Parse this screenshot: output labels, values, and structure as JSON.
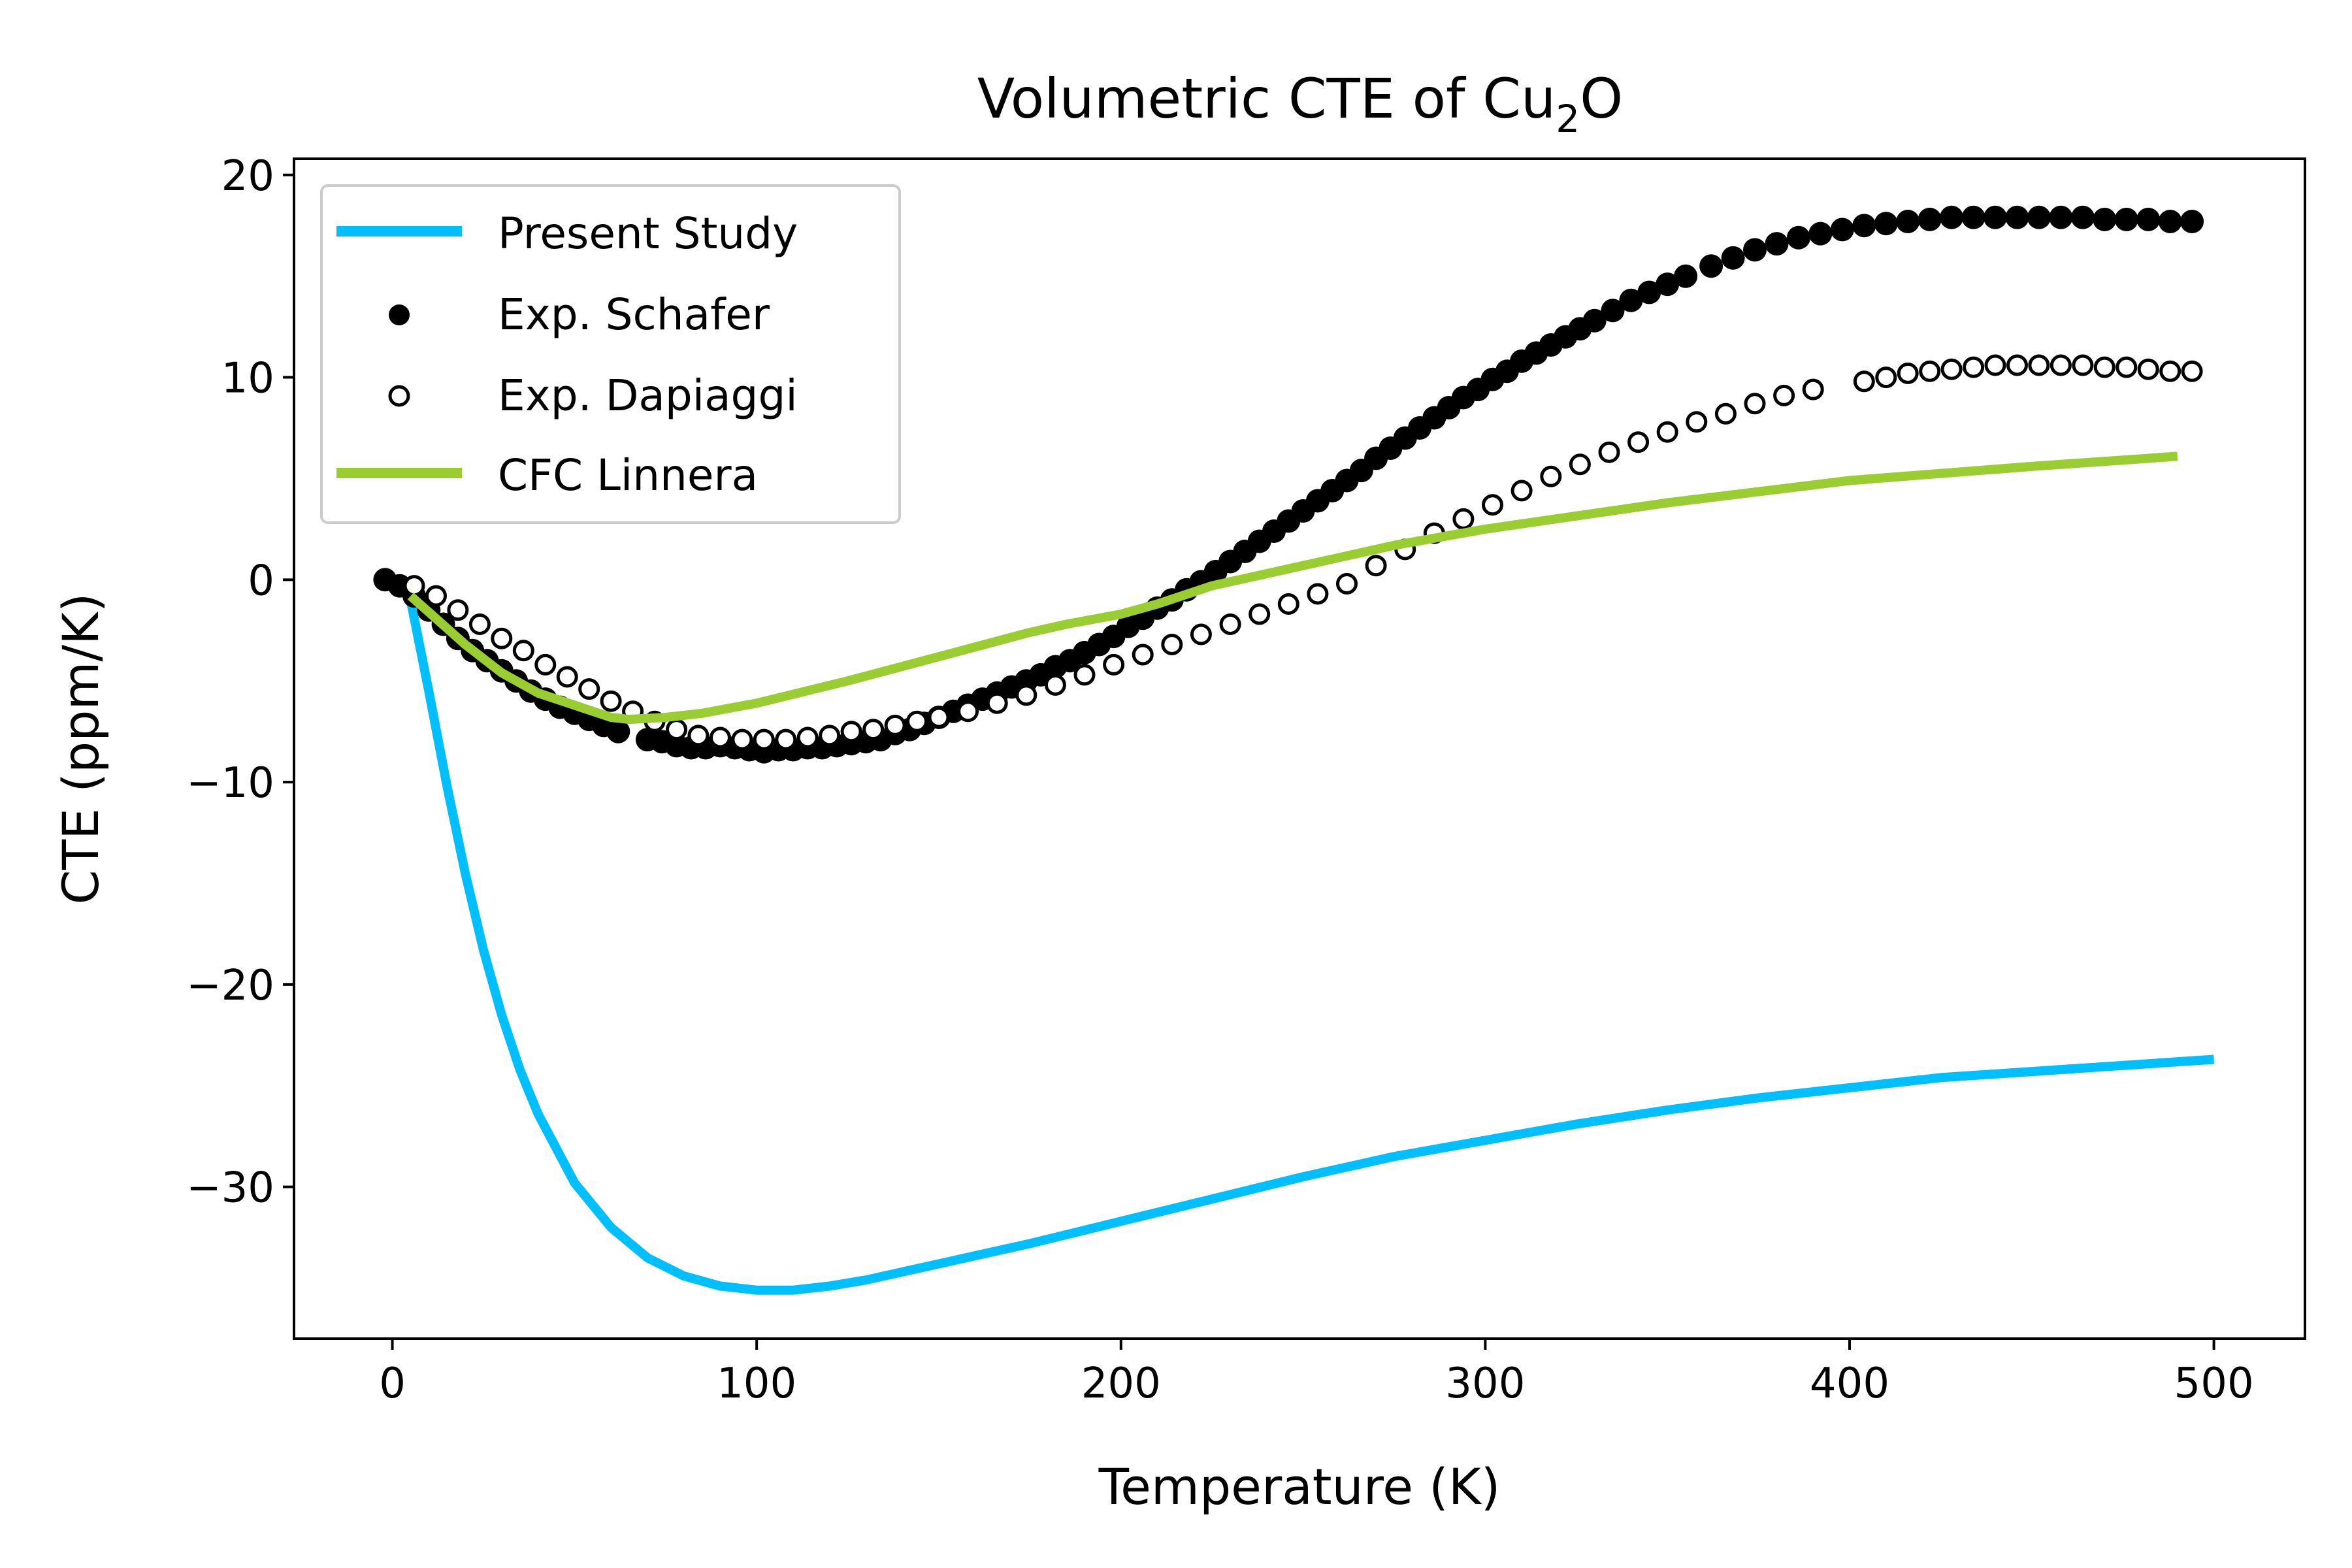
{
  "chart_data": {
    "type": "line",
    "title": "Volumetric CTE of Cu",
    "title_subscript": "2",
    "title_suffix": "O",
    "xlabel": "Temperature (K)",
    "ylabel": "CTE (ppm/K)",
    "xlim": [
      -27,
      525
    ],
    "ylim": [
      -37.5,
      20.8
    ],
    "xticks": [
      0,
      100,
      200,
      300,
      400,
      500
    ],
    "yticks": [
      -30,
      -20,
      -10,
      0,
      10,
      20
    ],
    "xtick_labels": [
      "0",
      "100",
      "200",
      "300",
      "400",
      "500"
    ],
    "ytick_labels": [
      "−30",
      "−20",
      "−10",
      "0",
      "10",
      "20"
    ],
    "grid": false,
    "legend_position": "top-left",
    "series": [
      {
        "name": "Present Study",
        "kind": "line",
        "color": "#00bfff",
        "x": [
          5,
          10,
          15,
          20,
          25,
          30,
          35,
          40,
          50,
          60,
          70,
          80,
          90,
          100,
          110,
          120,
          130,
          140,
          150,
          175,
          200,
          225,
          250,
          275,
          300,
          325,
          350,
          375,
          400,
          425,
          450,
          475,
          500
        ],
        "y": [
          -1.0,
          -5.5,
          -10.2,
          -14.5,
          -18.3,
          -21.5,
          -24.2,
          -26.4,
          -29.8,
          -32.0,
          -33.5,
          -34.4,
          -34.9,
          -35.1,
          -35.1,
          -34.9,
          -34.6,
          -34.2,
          -33.8,
          -32.8,
          -31.7,
          -30.6,
          -29.5,
          -28.5,
          -27.7,
          -26.9,
          -26.2,
          -25.6,
          -25.1,
          -24.6,
          -24.3,
          -24.0,
          -23.7
        ]
      },
      {
        "name": "Exp. Schafer",
        "kind": "scatter",
        "marker": "filled",
        "color": "#000000",
        "x": [
          -2,
          2,
          6,
          10,
          14,
          18,
          22,
          26,
          30,
          34,
          38,
          42,
          46,
          50,
          54,
          58,
          62,
          70,
          74,
          78,
          82,
          86,
          90,
          94,
          98,
          102,
          106,
          110,
          114,
          118,
          122,
          126,
          130,
          134,
          138,
          142,
          146,
          150,
          154,
          158,
          162,
          166,
          170,
          174,
          178,
          182,
          186,
          190,
          194,
          198,
          202,
          206,
          210,
          214,
          218,
          222,
          226,
          230,
          234,
          238,
          242,
          246,
          250,
          254,
          258,
          262,
          266,
          270,
          274,
          278,
          282,
          286,
          290,
          294,
          298,
          302,
          306,
          310,
          314,
          318,
          322,
          326,
          330,
          335,
          340,
          345,
          350,
          355,
          362,
          368,
          374,
          380,
          386,
          392,
          398,
          404,
          410,
          416,
          422,
          428,
          434,
          440,
          446,
          452,
          458,
          464,
          470,
          476,
          482,
          488,
          494
        ],
        "y": [
          0.0,
          -0.3,
          -0.8,
          -1.5,
          -2.2,
          -2.9,
          -3.5,
          -4.0,
          -4.5,
          -5.0,
          -5.5,
          -5.9,
          -6.3,
          -6.6,
          -6.9,
          -7.2,
          -7.5,
          -7.9,
          -8.0,
          -8.2,
          -8.3,
          -8.3,
          -8.2,
          -8.3,
          -8.4,
          -8.5,
          -8.4,
          -8.4,
          -8.3,
          -8.3,
          -8.2,
          -8.1,
          -8.0,
          -7.9,
          -7.6,
          -7.4,
          -7.1,
          -6.8,
          -6.5,
          -6.2,
          -5.9,
          -5.6,
          -5.3,
          -5.0,
          -4.7,
          -4.3,
          -4.0,
          -3.6,
          -3.2,
          -2.8,
          -2.3,
          -1.9,
          -1.4,
          -1.0,
          -0.5,
          -0.1,
          0.4,
          0.9,
          1.4,
          1.9,
          2.4,
          2.9,
          3.4,
          3.9,
          4.4,
          4.9,
          5.4,
          6.0,
          6.5,
          7.0,
          7.5,
          8.0,
          8.5,
          9.0,
          9.4,
          9.9,
          10.3,
          10.8,
          11.2,
          11.6,
          12.0,
          12.4,
          12.8,
          13.3,
          13.8,
          14.2,
          14.6,
          15.0,
          15.5,
          15.9,
          16.3,
          16.6,
          16.9,
          17.1,
          17.3,
          17.5,
          17.6,
          17.7,
          17.8,
          17.9,
          17.9,
          17.9,
          17.9,
          17.9,
          17.9,
          17.9,
          17.8,
          17.8,
          17.8,
          17.7,
          17.7
        ]
      },
      {
        "name": "Exp. Dapiaggi",
        "kind": "scatter",
        "marker": "open",
        "color": "#000000",
        "x": [
          6,
          12,
          18,
          24,
          30,
          36,
          42,
          48,
          54,
          60,
          66,
          72,
          78,
          84,
          90,
          96,
          102,
          108,
          114,
          120,
          126,
          132,
          138,
          144,
          150,
          158,
          166,
          174,
          182,
          190,
          198,
          206,
          214,
          222,
          230,
          238,
          246,
          254,
          262,
          270,
          278,
          286,
          294,
          302,
          310,
          318,
          326,
          334,
          342,
          350,
          358,
          366,
          374,
          382,
          390,
          404,
          410,
          416,
          422,
          428,
          434,
          440,
          446,
          452,
          458,
          464,
          470,
          476,
          482,
          488,
          494
        ],
        "y": [
          -0.3,
          -0.8,
          -1.5,
          -2.2,
          -2.9,
          -3.5,
          -4.2,
          -4.8,
          -5.4,
          -6.0,
          -6.5,
          -7.0,
          -7.4,
          -7.7,
          -7.8,
          -7.9,
          -7.9,
          -7.9,
          -7.8,
          -7.7,
          -7.5,
          -7.4,
          -7.2,
          -7.0,
          -6.8,
          -6.5,
          -6.1,
          -5.7,
          -5.2,
          -4.7,
          -4.2,
          -3.7,
          -3.2,
          -2.7,
          -2.2,
          -1.7,
          -1.2,
          -0.7,
          -0.2,
          0.7,
          1.5,
          2.3,
          3.0,
          3.7,
          4.4,
          5.1,
          5.7,
          6.3,
          6.8,
          7.3,
          7.8,
          8.2,
          8.7,
          9.1,
          9.4,
          9.8,
          10.0,
          10.2,
          10.3,
          10.4,
          10.5,
          10.6,
          10.6,
          10.6,
          10.6,
          10.6,
          10.5,
          10.5,
          10.4,
          10.3,
          10.3
        ]
      },
      {
        "name": "CFC Linnera",
        "kind": "line",
        "color": "#9acd32",
        "x": [
          5,
          10,
          20,
          30,
          40,
          50,
          60,
          65,
          75,
          85,
          100,
          125,
          150,
          175,
          185,
          200,
          210,
          225,
          250,
          275,
          300,
          350,
          400,
          450,
          490
        ],
        "y": [
          -0.8,
          -1.6,
          -3.2,
          -4.6,
          -5.6,
          -6.2,
          -6.8,
          -6.9,
          -6.8,
          -6.6,
          -6.1,
          -5.0,
          -3.8,
          -2.6,
          -2.2,
          -1.7,
          -1.2,
          -0.3,
          0.7,
          1.7,
          2.5,
          3.8,
          4.9,
          5.6,
          6.1
        ]
      }
    ]
  }
}
